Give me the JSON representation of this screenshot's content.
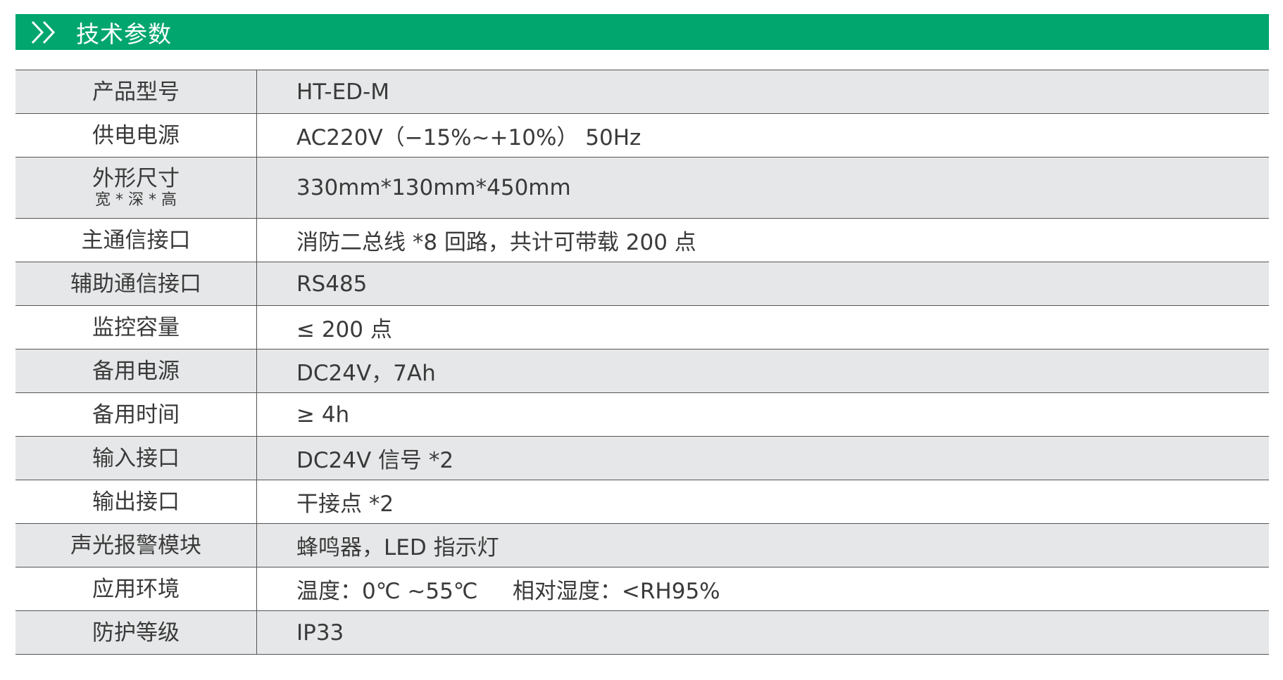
{
  "header": {
    "title": "技术参数",
    "icon": "double-chevron-right-icon",
    "color": "#00a66e"
  },
  "specs": [
    {
      "label": "产品型号",
      "value": "HT-ED-M"
    },
    {
      "label": "供电电源",
      "value": "AC220V（−15%~+10%） 50Hz"
    },
    {
      "label": "外形尺寸",
      "sublabel": "宽 * 深 * 高",
      "value": "330mm*130mm*450mm"
    },
    {
      "label": "主通信接口",
      "value": "消防二总线 *8 回路，共计可带载 200 点"
    },
    {
      "label": "辅助通信接口",
      "value": "RS485"
    },
    {
      "label": "监控容量",
      "value": "≤ 200 点"
    },
    {
      "label": "备用电源",
      "value": "DC24V，7Ah"
    },
    {
      "label": "备用时间",
      "value": "≥ 4h"
    },
    {
      "label": "输入接口",
      "value": "DC24V 信号 *2"
    },
    {
      "label": "输出接口",
      "value": "干接点 *2"
    },
    {
      "label": "声光报警模块",
      "value": "蜂鸣器，LED 指示灯"
    },
    {
      "label": "应用环境",
      "value": "温度：0℃ ~55℃     相对湿度：<RH95%"
    },
    {
      "label": "防护等级",
      "value": "IP33"
    }
  ]
}
